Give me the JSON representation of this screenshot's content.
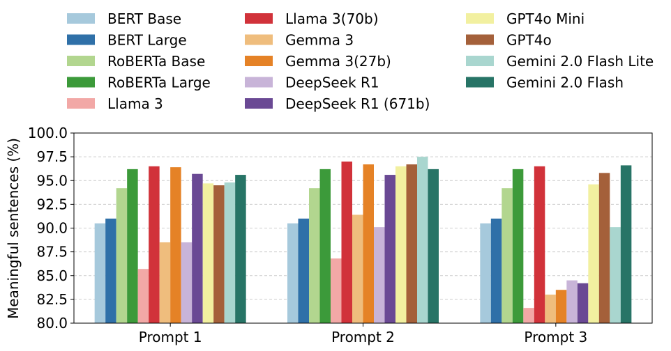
{
  "chart_data": {
    "type": "bar",
    "title": "",
    "xlabel": "",
    "ylabel": "Meaningful sentences (%)",
    "ylim": [
      80.0,
      100.0
    ],
    "yticks": [
      "80.0",
      "82.5",
      "85.0",
      "87.5",
      "90.0",
      "92.5",
      "95.0",
      "97.5",
      "100.0"
    ],
    "grid": "y-dashed",
    "legend_position": "top",
    "categories": [
      "Prompt 1",
      "Prompt 2",
      "Prompt 3"
    ],
    "series": [
      {
        "name": "BERT Base",
        "color": "#a6c9dc",
        "values": [
          90.5,
          90.5,
          90.5
        ]
      },
      {
        "name": "BERT Large",
        "color": "#2f70a8",
        "values": [
          91.0,
          91.0,
          91.0
        ]
      },
      {
        "name": "RoBERTa Base",
        "color": "#b2d68f",
        "values": [
          94.2,
          94.2,
          94.2
        ]
      },
      {
        "name": "RoBERTa Large",
        "color": "#3c9a3a",
        "values": [
          96.2,
          96.2,
          96.2
        ]
      },
      {
        "name": "Llama 3",
        "color": "#f2a8a6",
        "values": [
          85.7,
          86.8,
          81.6
        ]
      },
      {
        "name": "Llama 3(70b)",
        "color": "#d1323a",
        "values": [
          96.5,
          97.0,
          96.5
        ]
      },
      {
        "name": "Gemma 3",
        "color": "#efbd7d",
        "values": [
          88.5,
          91.4,
          83.0
        ]
      },
      {
        "name": "Gemma 3(27b)",
        "color": "#e58226",
        "values": [
          96.4,
          96.7,
          83.5
        ]
      },
      {
        "name": "DeepSeek R1",
        "color": "#c8b4d8",
        "values": [
          88.5,
          90.1,
          84.5
        ]
      },
      {
        "name": "DeepSeek R1 (671b)",
        "color": "#6a4994",
        "values": [
          95.7,
          95.6,
          84.2
        ]
      },
      {
        "name": "GPT4o Mini",
        "color": "#f2f0a0",
        "values": [
          94.7,
          96.5,
          94.6
        ]
      },
      {
        "name": "GPT4o",
        "color": "#a4603a",
        "values": [
          94.5,
          96.7,
          95.8
        ]
      },
      {
        "name": "Gemini 2.0 Flash Lite",
        "color": "#a9d6cf",
        "values": [
          94.8,
          97.5,
          90.1
        ]
      },
      {
        "name": "Gemini 2.0 Flash",
        "color": "#277466",
        "values": [
          95.6,
          96.2,
          96.6
        ]
      }
    ]
  }
}
